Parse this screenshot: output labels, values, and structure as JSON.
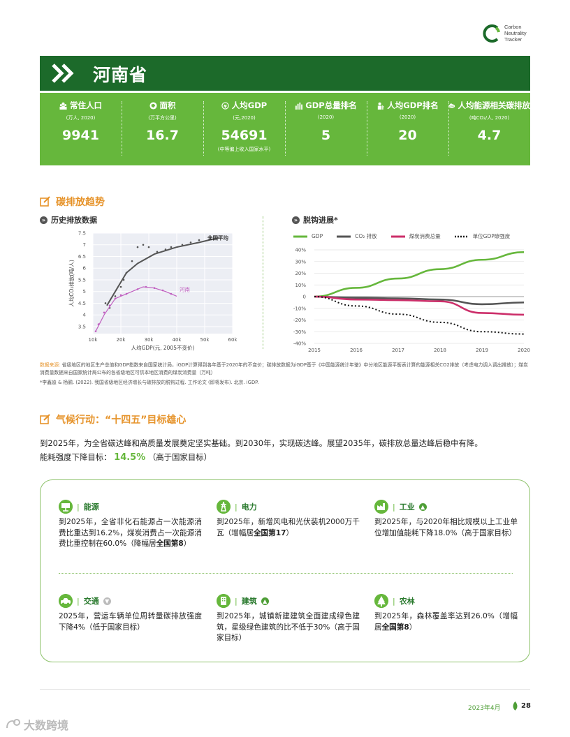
{
  "logo": {
    "lines": [
      "Carbon",
      "Neutrality",
      "Tracker"
    ]
  },
  "banner": {
    "title": "河南省"
  },
  "stats": [
    {
      "label": "常住人口",
      "unit": "(万人, 2020)",
      "value": "9941",
      "note": "",
      "icon": "people-icon"
    },
    {
      "label": "面积",
      "unit": "(万平方公里)",
      "value": "16.7",
      "note": "",
      "icon": "area-icon"
    },
    {
      "label": "人均GDP",
      "unit": "(元,2020)",
      "value": "54691",
      "note": "(中等偏上收入国家水平)",
      "icon": "yuan-icon"
    },
    {
      "label": "GDP总量排名",
      "unit": "(2020)",
      "value": "5",
      "note": "",
      "icon": "bar-chart-icon"
    },
    {
      "label": "人均GDP排名",
      "unit": "(2020)",
      "value": "20",
      "note": "",
      "icon": "person-rank-icon"
    },
    {
      "label": "人均能源相关碳排放",
      "unit": "(吨CO₂/人, 2020)",
      "value": "4.7",
      "note": "",
      "icon": "co2-cloud-icon"
    }
  ],
  "section1": {
    "title": "碳排放趋势"
  },
  "history": {
    "title": "历史排放数据"
  },
  "decoupling": {
    "title": "脱钩进展*"
  },
  "left_chart": {
    "ylabel": "人均CO₂排放(吨/人)",
    "xlabel": "人均GDP(元, 2005不变价)",
    "national_label": "全国平均",
    "province_label": "河南"
  },
  "right_legend": [
    "GDP",
    "CO₂ 排放",
    "煤炭消费总量",
    "单位GDP碳强度"
  ],
  "chart_data": [
    {
      "type": "scatter",
      "title": "历史排放数据",
      "xlabel": "人均GDP(元, 2005不变价)",
      "ylabel": "人均CO₂排放(吨/人)",
      "x_ticks": [
        "10k",
        "20k",
        "30k",
        "40k",
        "50k",
        "60k"
      ],
      "y_ticks": [
        "3.5",
        "4",
        "4.5",
        "5",
        "5.5",
        "6",
        "6.5",
        "7",
        "7.5"
      ],
      "xlim": [
        10000,
        60000
      ],
      "ylim": [
        3.2,
        7.5
      ],
      "series": [
        {
          "name": "全国平均",
          "color": "#555555",
          "x": [
            15000,
            18000,
            22000,
            26000,
            32000,
            40000,
            48000,
            55000
          ],
          "y": [
            4.4,
            5.0,
            5.8,
            6.2,
            6.6,
            6.9,
            7.1,
            7.3
          ],
          "points_x": [
            14500,
            16000,
            18000,
            20000,
            21000,
            22000,
            24000,
            26000,
            28000,
            30000,
            33000,
            36000,
            38000,
            42000,
            45000,
            48000,
            52000
          ],
          "points_y": [
            4.5,
            4.3,
            4.8,
            5.2,
            5.5,
            5.8,
            6.3,
            6.9,
            7.0,
            6.9,
            6.7,
            6.8,
            6.9,
            7.0,
            7.1,
            7.2,
            7.3
          ]
        },
        {
          "name": "河南",
          "color": "#c05fc0",
          "x": [
            11000,
            14000,
            18000,
            22000,
            28000,
            32000,
            36000,
            40000
          ],
          "y": [
            3.3,
            4.0,
            4.7,
            4.9,
            5.2,
            5.15,
            5.0,
            4.8
          ],
          "points_x": [
            11000,
            12000,
            14000,
            16000,
            18000,
            20000,
            22000,
            26000,
            29000,
            32000,
            35000,
            38000
          ],
          "points_y": [
            3.3,
            3.6,
            4.1,
            4.4,
            4.7,
            4.85,
            4.9,
            5.1,
            5.2,
            5.15,
            5.05,
            4.9
          ]
        }
      ]
    },
    {
      "type": "line",
      "title": "脱钩进展*",
      "x": [
        2015,
        2016,
        2017,
        2018,
        2019,
        2020
      ],
      "x_ticks": [
        "2015",
        "2016",
        "2017",
        "2018",
        "2019",
        "2020"
      ],
      "y_ticks": [
        "40%",
        "30%",
        "20%",
        "10%",
        "0",
        "-10%",
        "-20%",
        "-30%",
        "-40%"
      ],
      "ylim": [
        -40,
        40
      ],
      "series": [
        {
          "name": "GDP",
          "color": "#66b73c",
          "style": "solid",
          "x": [
            2015,
            2016,
            2017,
            2018,
            2019,
            2020
          ],
          "y": [
            0,
            7.5,
            15.5,
            23.5,
            31.5,
            38
          ]
        },
        {
          "name": "CO₂ 排放",
          "color": "#555555",
          "style": "solid",
          "x": [
            2015,
            2016,
            2017,
            2018,
            2019,
            2020
          ],
          "y": [
            0,
            -1,
            -1.5,
            -2.5,
            -6.5,
            -5
          ]
        },
        {
          "name": "煤炭消费总量",
          "color": "#cc2f6a",
          "style": "solid",
          "x": [
            2015,
            2016,
            2017,
            2018,
            2019,
            2020
          ],
          "y": [
            0,
            -2.5,
            -3,
            -4,
            -14,
            -15.5
          ]
        },
        {
          "name": "单位GDP碳强度",
          "color": "#111111",
          "style": "dotted",
          "x": [
            2015,
            2016,
            2017,
            2018,
            2019,
            2020
          ],
          "y": [
            0,
            -8,
            -15,
            -22,
            -30,
            -32
          ]
        }
      ]
    }
  ],
  "source": {
    "label": "数据来源:",
    "text": "省级地区的地区生产总值和GDP指数来自国家统计局，iGDP计算得到各年基于2020年的不变价；碳排放数据为iGDP基于《中国能源统计年鉴》中分地区能源平衡表计算的能源相关CO2排放（考虑电力调入调出排放）；煤炭消费量数据来自国家统计局公布的各省级地区可供本地区消费的煤炭消费量（万吨）",
    "footnote": "*李鑫迪 & 杨鹂. (2022). 我国省级地区经济增长与碳排放的脱钩过程. 工作论文 (即将发布). 北京. iGDP."
  },
  "section2": {
    "title": "气候行动：“十四五”目标雄心"
  },
  "climate": {
    "intro": "到2025年，为全省碳达峰和高质量发展奠定坚实基础。到2030年，实现碳达峰。展望2035年，碳排放总量达峰后稳中有降。",
    "target_label": "能耗强度下降目标：",
    "target_value": "14.5%",
    "target_note": "（高于国家目标）"
  },
  "policies": {
    "energy": {
      "title": "能源",
      "text_pre": "到2025年，全省非化石能源占一次能源消费比重达到16.2%，煤炭消费占一次能源消费比重控制在60.0%（降幅居",
      "bold": "全国第8",
      "text_post": "）"
    },
    "power": {
      "title": "电力",
      "text_pre": "到2025年，新增风电和光伏装机2000万千瓦（增幅居",
      "bold": "全国第17",
      "text_post": "）"
    },
    "industry": {
      "title": "工业",
      "text_pre": "到2025年，与2020年相比规模以上工业单位增加值能耗下降18.0%（高于国家目标）",
      "bold": "",
      "text_post": ""
    },
    "transport": {
      "title": "交通",
      "text_pre": "2025年，营运车辆单位周转量碳排放强度下降4%（低于国家目标）",
      "bold": "",
      "text_post": ""
    },
    "building": {
      "title": "建筑",
      "text_pre": "到2025年，城镇新建建筑全面建成绿色建筑，星级绿色建筑的比不低于30%（高于国家目标）",
      "bold": "",
      "text_post": ""
    },
    "forestry": {
      "title": "农林",
      "text_pre": "到2025年，森林覆盖率达到26.0%（增幅居",
      "bold": "全国第8",
      "text_post": "）"
    }
  },
  "footer": {
    "date": "2023年4月",
    "page": "28"
  },
  "watermark": {
    "text": "大数跨境"
  },
  "colors": {
    "dark_green": "#1c6a2a",
    "green": "#66b73c",
    "orange": "#e6932a",
    "magenta": "#cc2f6a"
  }
}
